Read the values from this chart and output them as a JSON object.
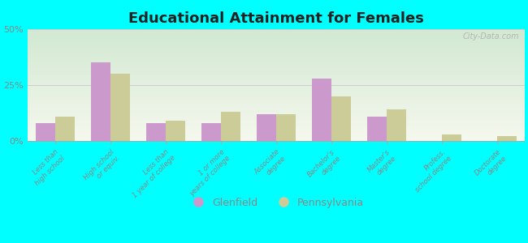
{
  "title": "Educational Attainment for Females",
  "categories": [
    "Less than\nhigh school",
    "High school\nor equiv.",
    "Less than\n1 year of college",
    "1 or more\nyears of college",
    "Associate\ndegree",
    "Bachelor's\ndegree",
    "Master's\ndegree",
    "Profess.\nschool degree",
    "Doctorate\ndegree"
  ],
  "glenfield": [
    8,
    35,
    8,
    8,
    12,
    28,
    11,
    0,
    0
  ],
  "pennsylvania": [
    11,
    30,
    9,
    13,
    12,
    20,
    14,
    3,
    2
  ],
  "glenfield_color": "#cc99cc",
  "pennsylvania_color": "#cccc99",
  "background_plot_top": "#f5f5e8",
  "background_plot_bottom": "#d8e8d0",
  "background_outer": "#00ffff",
  "title_color": "#222222",
  "axis_label_color": "#888888",
  "ylim": [
    0,
    50
  ],
  "yticks": [
    0,
    25,
    50
  ],
  "ytick_labels": [
    "0%",
    "25%",
    "50%"
  ],
  "grid_color": "#cccccc",
  "watermark": "City-Data.com",
  "bar_width": 0.35
}
